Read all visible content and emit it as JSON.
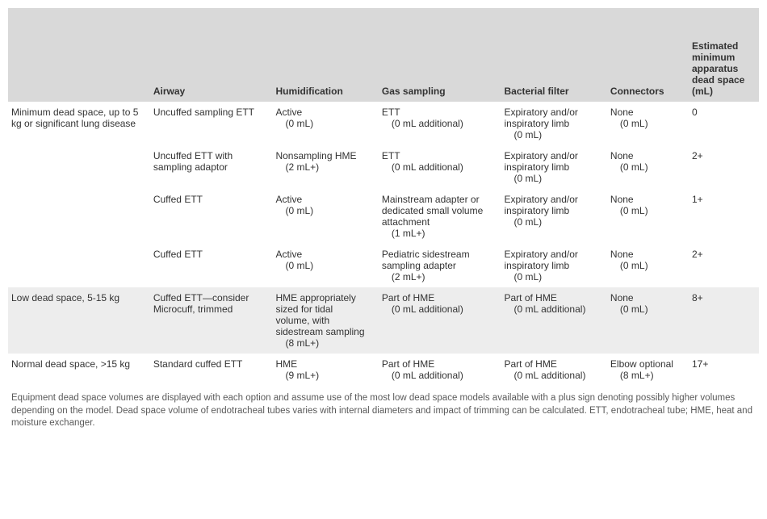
{
  "colors": {
    "header_bg": "#d9d9d9",
    "row_shade": "#ededed",
    "text": "#333333",
    "footnote_text": "#5a5a5a"
  },
  "typography": {
    "body_fontsize_pt": 9,
    "header_fontsize_pt": 9,
    "footnote_fontsize_pt": 8.5,
    "font_family": "Arial"
  },
  "columns": [
    "",
    "Airway",
    "Humidification",
    "Gas sampling",
    "Bacterial filter",
    "Connectors",
    "Estimated minimum apparatus dead space (mL)"
  ],
  "rows": [
    {
      "shaded": false,
      "label": "Minimum dead space, up to 5 kg or significant lung disease",
      "airway": "Uncuffed sampling ETT",
      "humid_main": "Active",
      "humid_sub": "(0 mL)",
      "gas_main": "ETT",
      "gas_sub": "(0 mL additional)",
      "filter_main": "Expiratory and/or inspiratory limb",
      "filter_sub": "(0 mL)",
      "conn_main": "None",
      "conn_sub": "(0 mL)",
      "deadspace": "0"
    },
    {
      "shaded": false,
      "label": "",
      "airway": "Uncuffed ETT with sampling adaptor",
      "humid_main": "Nonsampling HME",
      "humid_sub": "(2 mL+)",
      "gas_main": "ETT",
      "gas_sub": "(0 mL additional)",
      "filter_main": "Expiratory and/or inspiratory limb",
      "filter_sub": "(0 mL)",
      "conn_main": "None",
      "conn_sub": "(0 mL)",
      "deadspace": "2+"
    },
    {
      "shaded": false,
      "label": "",
      "airway": "Cuffed ETT",
      "humid_main": "Active",
      "humid_sub": "(0 mL)",
      "gas_main": "Mainstream adapter or dedicated small volume attachment",
      "gas_sub": "(1 mL+)",
      "filter_main": "Expiratory and/or inspiratory limb",
      "filter_sub": "(0 mL)",
      "conn_main": "None",
      "conn_sub": "(0 mL)",
      "deadspace": "1+"
    },
    {
      "shaded": false,
      "label": "",
      "airway": "Cuffed ETT",
      "humid_main": "Active",
      "humid_sub": "(0 mL)",
      "gas_main": "Pediatric sidestream sampling adapter",
      "gas_sub": "(2 mL+)",
      "filter_main": "Expiratory and/or inspiratory limb",
      "filter_sub": "(0 mL)",
      "conn_main": "None",
      "conn_sub": "(0 mL)",
      "deadspace": "2+"
    },
    {
      "shaded": true,
      "label": "Low dead space, 5-15 kg",
      "airway": "Cuffed ETT—consider Microcuff, trimmed",
      "humid_main": "HME appropriately sized for tidal volume, with sidestream sampling",
      "humid_sub": "(8 mL+)",
      "gas_main": "Part of HME",
      "gas_sub": "(0 mL additional)",
      "filter_main": "Part of HME",
      "filter_sub": "(0 mL additional)",
      "conn_main": "None",
      "conn_sub": "(0 mL)",
      "deadspace": "8+"
    },
    {
      "shaded": false,
      "label": "Normal dead space, >15 kg",
      "airway": "Standard cuffed ETT",
      "humid_main": "HME",
      "humid_sub": "(9 mL+)",
      "gas_main": "Part of HME",
      "gas_sub": "(0 mL additional)",
      "filter_main": "Part of HME",
      "filter_sub": "(0 mL additional)",
      "conn_main": "Elbow optional",
      "conn_sub": "(8 mL+)",
      "deadspace": "17+"
    }
  ],
  "footnote": "Equipment dead space volumes are displayed with each option and assume use of the most low dead space models available with a plus sign denoting possibly higher volumes depending on the model. Dead space volume of endotracheal tubes varies with internal diameters and impact of trimming can be calculated. ETT, endotracheal tube; HME, heat and moisture exchanger."
}
